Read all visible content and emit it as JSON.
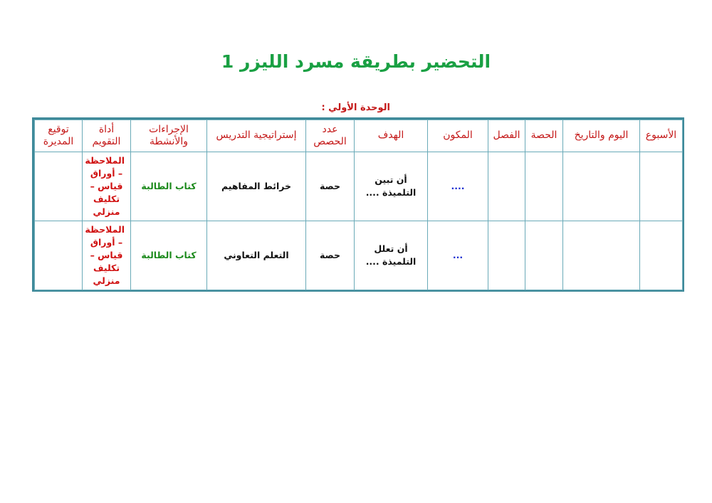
{
  "title": "التحضير بطريقة مسرد الليزر 1",
  "unit_label": "الوحدة الأولي :",
  "colors": {
    "title": "#19a043",
    "header_text": "#c41818",
    "border": "#3f8a9a",
    "procedures": "#1c8a1c",
    "assessment": "#d01010",
    "component": "#1a2bd0"
  },
  "table": {
    "headers": [
      "الأسبوع",
      "اليوم والتاريخ",
      "الحصة",
      "الفصل",
      "المكون",
      "الهدف",
      "عدد الحصص",
      "إستراتيجية التدريس",
      "الإجراءات والأنشطة",
      "أداة التقويم",
      "توقيع المديرة"
    ],
    "rows": [
      {
        "week": "",
        "date": "",
        "period": "",
        "class": "",
        "component": "....",
        "goal": "أن تبين التلميذة ....",
        "count": "حصة",
        "strategy": "خرائط المفاهيم",
        "procedures": "كتاب الطالبة",
        "assessment": "الملاحظة – أوراق قياس – تكليف منزلي",
        "signature": ""
      },
      {
        "week": "",
        "date": "",
        "period": "",
        "class": "",
        "component": "...",
        "goal": "أن تعلل التلميذة ....",
        "count": "حصة",
        "strategy": "التعلم التعاوني",
        "procedures": "كتاب الطالبة",
        "assessment": "الملاحظة – أوراق قياس – تكليف منزلي",
        "signature": ""
      }
    ]
  }
}
